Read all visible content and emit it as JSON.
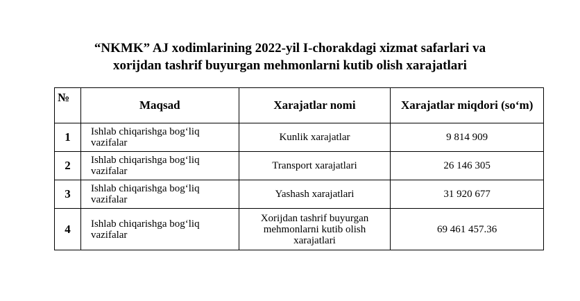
{
  "title": {
    "line1": "“NKMK” AJ xodimlarining 2022-yil I-chorakdagi xizmat safarlari va",
    "line2": "xorijdan tashrif buyurgan mehmonlarni kutib olish xarajatlari"
  },
  "table": {
    "headers": [
      "№",
      "Maqsad",
      "Xarajatlar nomi",
      "Xarajatlar miqdori (so‘m)"
    ],
    "rows": [
      {
        "no": "1",
        "purpose": "Ishlab chiqarishga bog‘liq vazifalar",
        "name": "Kunlik xarajatlar",
        "amount": "9 814 909"
      },
      {
        "no": "2",
        "purpose": "Ishlab chiqarishga bog‘liq vazifalar",
        "name": "Transport xarajatlari",
        "amount": "26 146 305"
      },
      {
        "no": "3",
        "purpose": "Ishlab chiqarishga bog‘liq vazifalar",
        "name": "Yashash xarajatlari",
        "amount": "31 920 677"
      },
      {
        "no": "4",
        "purpose": "Ishlab chiqarishga bog‘liq vazifalar",
        "name": "Xorijdan tashrif buyurgan mehmonlarni kutib olish xarajatlari",
        "amount": "69 461 457.36"
      }
    ]
  }
}
